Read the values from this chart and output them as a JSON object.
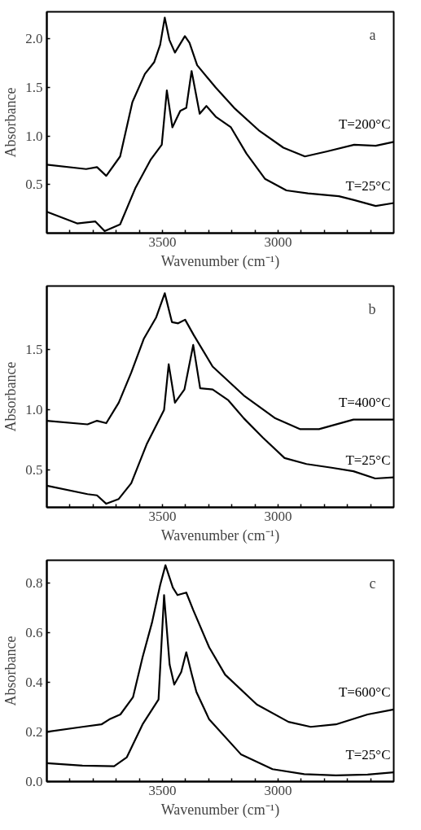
{
  "chart_data": [
    {
      "type": "line",
      "xlabel": "Wavenumber (cm⁻¹)",
      "ylabel": "Absorbance",
      "annotations": [
        "a"
      ],
      "xlim": [
        4000,
        2500
      ],
      "ylim": [
        0,
        2.28
      ],
      "xticks": [
        {
          "value": 3900,
          "label": null
        },
        {
          "value": 3800,
          "label": null
        },
        {
          "value": 3700,
          "label": null
        },
        {
          "value": 3600,
          "label": null
        },
        3500,
        {
          "value": 3400,
          "label": null
        },
        {
          "value": 3300,
          "label": null
        },
        {
          "value": 3200,
          "label": null
        },
        {
          "value": 3100,
          "label": null
        },
        3000,
        {
          "value": 2900,
          "label": null
        },
        {
          "value": 2800,
          "label": null
        },
        {
          "value": 2700,
          "label": null
        },
        {
          "value": 2600,
          "label": null
        }
      ],
      "yticks": [
        {
          "value": 0.5,
          "label": "0.5"
        },
        {
          "value": 1,
          "label": "1.0"
        },
        {
          "value": 1.5,
          "label": "1.5"
        },
        {
          "value": 2,
          "label": "2.0"
        }
      ],
      "grid": false,
      "line_style": "solid",
      "marker": "none",
      "series": [
        {
          "name": "T=200°C",
          "color": "#000000",
          "x": [
            4000,
            3830,
            3783,
            3743,
            3683,
            3630,
            3576,
            3536,
            3510,
            3490,
            3470,
            3446,
            3403,
            3383,
            3350,
            3270,
            3190,
            3084,
            2977,
            2884,
            2791,
            2671,
            2578,
            2500
          ],
          "values": [
            0.705,
            0.66,
            0.68,
            0.59,
            0.79,
            1.35,
            1.64,
            1.76,
            1.94,
            2.22,
            1.99,
            1.86,
            2.03,
            1.96,
            1.73,
            1.5,
            1.29,
            1.06,
            0.88,
            0.79,
            0.84,
            0.91,
            0.9,
            0.94
          ]
        },
        {
          "name": "T=25°C",
          "color": "#000000",
          "x": [
            4000,
            3869,
            3790,
            3750,
            3683,
            3616,
            3550,
            3503,
            3481,
            3457,
            3423,
            3397,
            3374,
            3339,
            3310,
            3270,
            3204,
            3137,
            3057,
            2964,
            2871,
            2737,
            2671,
            2578,
            2500
          ],
          "values": [
            0.22,
            0.1,
            0.12,
            0.02,
            0.09,
            0.47,
            0.76,
            0.91,
            1.47,
            1.09,
            1.26,
            1.29,
            1.67,
            1.23,
            1.31,
            1.2,
            1.09,
            0.82,
            0.56,
            0.44,
            0.41,
            0.38,
            0.34,
            0.28,
            0.31
          ]
        }
      ]
    },
    {
      "type": "line",
      "xlabel": "Wavenumber (cm⁻¹)",
      "ylabel": "Absorbance",
      "annotations": [
        "b"
      ],
      "xlim": [
        4000,
        2500
      ],
      "ylim": [
        0.19,
        2.03
      ],
      "xticks": [
        {
          "value": 3900,
          "label": null
        },
        {
          "value": 3800,
          "label": null
        },
        {
          "value": 3700,
          "label": null
        },
        {
          "value": 3600,
          "label": null
        },
        3500,
        {
          "value": 3400,
          "label": null
        },
        {
          "value": 3300,
          "label": null
        },
        {
          "value": 3200,
          "label": null
        },
        {
          "value": 3100,
          "label": null
        },
        3000,
        {
          "value": 2900,
          "label": null
        },
        {
          "value": 2800,
          "label": null
        },
        {
          "value": 2700,
          "label": null
        },
        {
          "value": 2600,
          "label": null
        }
      ],
      "yticks": [
        {
          "value": 0.5,
          "label": "0.5"
        },
        {
          "value": 1,
          "label": "1.0"
        },
        {
          "value": 1.5,
          "label": "1.5"
        }
      ],
      "grid": false,
      "line_style": "solid",
      "marker": "none",
      "series": [
        {
          "name": "T=400°C",
          "color": "#000000",
          "x": [
            4000,
            3824,
            3783,
            3743,
            3689,
            3635,
            3581,
            3527,
            3490,
            3459,
            3432,
            3402,
            3364,
            3283,
            3148,
            3012,
            2904,
            2823,
            2674,
            2500
          ],
          "values": [
            0.91,
            0.88,
            0.91,
            0.89,
            1.06,
            1.31,
            1.59,
            1.77,
            1.97,
            1.73,
            1.72,
            1.75,
            1.62,
            1.36,
            1.12,
            0.93,
            0.84,
            0.84,
            0.92,
            0.92
          ]
        },
        {
          "name": "T=25°C",
          "color": "#000000",
          "x": [
            4000,
            3824,
            3783,
            3743,
            3689,
            3635,
            3567,
            3493,
            3473,
            3446,
            3405,
            3367,
            3337,
            3283,
            3215,
            3148,
            3066,
            2972,
            2877,
            2769,
            2674,
            2580,
            2500
          ],
          "values": [
            0.37,
            0.3,
            0.29,
            0.22,
            0.26,
            0.39,
            0.72,
            1.0,
            1.38,
            1.06,
            1.17,
            1.54,
            1.18,
            1.17,
            1.08,
            0.93,
            0.77,
            0.6,
            0.55,
            0.52,
            0.49,
            0.43,
            0.44
          ]
        }
      ]
    },
    {
      "type": "line",
      "xlabel": "Wavenumber (cm⁻¹)",
      "ylabel": "Absorbance",
      "annotations": [
        "c"
      ],
      "xlim": [
        4000,
        2500
      ],
      "ylim": [
        0,
        0.89
      ],
      "xticks": [
        {
          "value": 3900,
          "label": null
        },
        {
          "value": 3800,
          "label": null
        },
        {
          "value": 3700,
          "label": null
        },
        {
          "value": 3600,
          "label": null
        },
        3500,
        {
          "value": 3400,
          "label": null
        },
        {
          "value": 3300,
          "label": null
        },
        {
          "value": 3200,
          "label": null
        },
        {
          "value": 3100,
          "label": null
        },
        3000,
        {
          "value": 2900,
          "label": null
        },
        {
          "value": 2800,
          "label": null
        },
        {
          "value": 2700,
          "label": null
        },
        {
          "value": 2600,
          "label": null
        }
      ],
      "yticks": [
        {
          "value": 0,
          "label": "0.0"
        },
        {
          "value": 0.2,
          "label": "0.2"
        },
        {
          "value": 0.4,
          "label": "0.4"
        },
        {
          "value": 0.6,
          "label": "0.6"
        },
        {
          "value": 0.8,
          "label": "0.8"
        }
      ],
      "grid": false,
      "line_style": "solid",
      "marker": "none",
      "series": [
        {
          "name": "T=600°C",
          "color": "#000000",
          "x": [
            4000,
            3846,
            3764,
            3730,
            3682,
            3627,
            3586,
            3545,
            3510,
            3487,
            3455,
            3435,
            3397,
            3367,
            3298,
            3229,
            3092,
            2955,
            2859,
            2750,
            2613,
            2500
          ],
          "values": [
            0.2,
            0.22,
            0.23,
            0.25,
            0.27,
            0.34,
            0.5,
            0.64,
            0.79,
            0.87,
            0.78,
            0.75,
            0.76,
            0.69,
            0.54,
            0.43,
            0.31,
            0.24,
            0.22,
            0.23,
            0.27,
            0.29
          ]
        },
        {
          "name": "T=25°C",
          "color": "#000000",
          "x": [
            4000,
            3846,
            3709,
            3654,
            3586,
            3517,
            3493,
            3469,
            3449,
            3419,
            3397,
            3373,
            3353,
            3298,
            3161,
            3024,
            2887,
            2750,
            2613,
            2500
          ],
          "values": [
            0.074,
            0.064,
            0.062,
            0.098,
            0.23,
            0.33,
            0.75,
            0.47,
            0.39,
            0.44,
            0.52,
            0.43,
            0.36,
            0.25,
            0.11,
            0.05,
            0.03,
            0.025,
            0.028,
            0.037
          ]
        }
      ]
    }
  ]
}
